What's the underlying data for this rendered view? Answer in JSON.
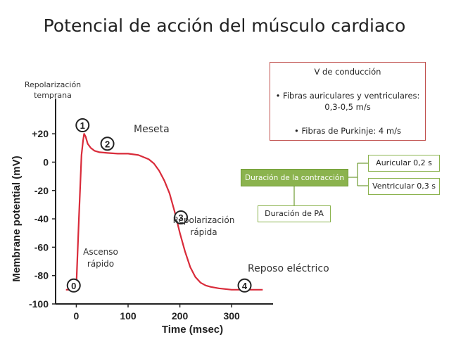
{
  "title": "Potencial de acción del músculo cardiaco",
  "chart_data": {
    "type": "line",
    "xlabel": "Time (msec)",
    "ylabel": "Membrane potential (mV)",
    "xlim": [
      -40,
      380
    ],
    "ylim": [
      -100,
      30
    ],
    "xticks": [
      0,
      100,
      200,
      300
    ],
    "yticks": [
      20,
      0,
      -20,
      -40,
      -60,
      -80,
      -100
    ],
    "xtick_labels": [
      "0",
      "100",
      "200",
      "300"
    ],
    "ytick_labels": [
      "+20",
      "0",
      "-20",
      "-40",
      "-60",
      "-80",
      "-100"
    ],
    "series": [
      {
        "x": [
          -20,
          -5,
          0,
          5,
          10,
          13,
          15,
          18,
          22,
          28,
          35,
          45,
          60,
          80,
          100,
          120,
          140,
          150,
          160,
          170,
          180,
          190,
          200,
          210,
          220,
          230,
          240,
          250,
          260,
          275,
          300,
          330,
          360
        ],
        "y": [
          -90,
          -90,
          -88,
          -40,
          5,
          15,
          20,
          18,
          13,
          10,
          8,
          7,
          6.5,
          6,
          6,
          5,
          2,
          -1,
          -6,
          -13,
          -22,
          -35,
          -50,
          -63,
          -74,
          -81,
          -85,
          -87,
          -88,
          -89,
          -90,
          -90,
          -90
        ]
      }
    ],
    "phases": [
      {
        "number": "0",
        "x": -5,
        "y": -87
      },
      {
        "number": "1",
        "x": 12,
        "y": 26
      },
      {
        "number": "2",
        "x": 60,
        "y": 13
      },
      {
        "number": "3",
        "x": 202,
        "y": -39
      },
      {
        "number": "4",
        "x": 325,
        "y": -87
      }
    ],
    "annotations": {
      "repol_temprana": "Repolarización temprana",
      "meseta": "Meseta",
      "repol_rapida": "Repolarización rápida",
      "ascenso": "Ascenso rápido",
      "reposo": "Reposo eléctrico"
    }
  },
  "info_box": {
    "heading": "V de conducción",
    "line1": "• Fibras auriculares y ventriculares:",
    "line2": "0,3-0,5 m/s",
    "line3": "• Fibras de Purkinje: 4 m/s"
  },
  "tree": {
    "root": "Duración de la contracción",
    "auricular": "Auricular 0,2 s",
    "ventricular": "Ventricular 0,3 s",
    "pa": "Duración de PA"
  },
  "colors": {
    "curve": "#d92b3a",
    "axis": "#222222",
    "box_border": "#c0504d",
    "green": "#8bb34e"
  }
}
